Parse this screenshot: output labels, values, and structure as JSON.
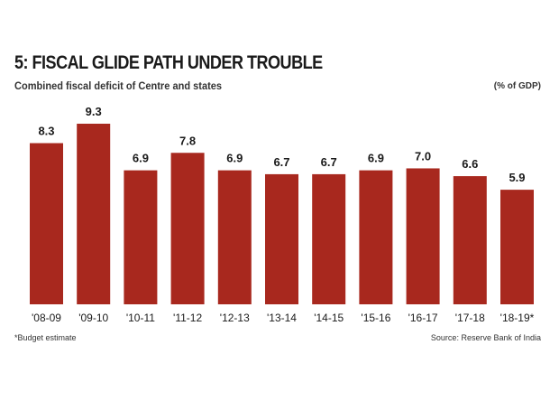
{
  "header": {
    "title": "5: FISCAL GLIDE PATH UNDER TROUBLE",
    "subtitle": "Combined fiscal deficit of Centre and states",
    "unit": "(% of GDP)"
  },
  "footer": {
    "note": "*Budget estimate",
    "source": "Source: Reserve Bank of India"
  },
  "colors": {
    "bar": "#a8281e",
    "text": "#1a1a1a"
  },
  "chart_data": {
    "type": "bar",
    "title": "5: FISCAL GLIDE PATH UNDER TROUBLE",
    "subtitle": "Combined fiscal deficit of Centre and states",
    "ylabel": "(% of GDP)",
    "xlabel": "",
    "categories": [
      "'08-09",
      "'09-10",
      "'10-11",
      "'11-12",
      "'12-13",
      "'13-14",
      "'14-15",
      "'15-16",
      "'16-17",
      "'17-18",
      "'18-19*"
    ],
    "values": [
      8.3,
      9.3,
      6.9,
      7.8,
      6.9,
      6.7,
      6.7,
      6.9,
      7.0,
      6.6,
      5.9
    ],
    "value_labels": [
      "8.3",
      "9.3",
      "6.9",
      "7.8",
      "6.9",
      "6.7",
      "6.7",
      "6.9",
      "7.0",
      "6.6",
      "5.9"
    ],
    "ylim": [
      0,
      9.3
    ],
    "grid": false,
    "legend": "none",
    "data_labels": "above bars"
  }
}
